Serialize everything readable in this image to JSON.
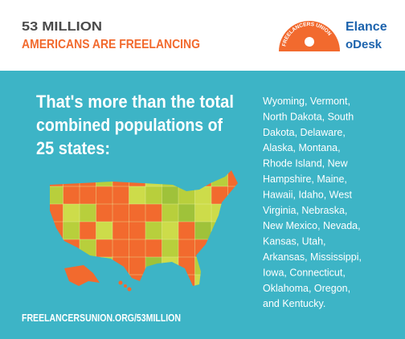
{
  "header": {
    "line1": "53 MILLION",
    "line2": "AMERICANS ARE FREELANCING"
  },
  "logos": {
    "freelancers_union": "FREELANCERS UNION",
    "elance": "Elance",
    "odesk": "oDesk"
  },
  "headline": {
    "lines": [
      "That's more than the total",
      "combined populations of",
      "25 states:"
    ]
  },
  "states_text": {
    "lines": [
      "Wyoming, Vermont,",
      "North Dakota, South",
      "Dakota, Delaware,",
      "Alaska, Montana,",
      "Rhode Island, New",
      "Hampshire, Maine,",
      "Hawaii, Idaho, West",
      "Virginia, Nebraska,",
      "New Mexico, Nevada,",
      "Kansas, Utah,",
      "Arkansas, Mississippi,",
      "Iowa, Connecticut,",
      "Oklahoma, Oregon,",
      "and Kentucky."
    ]
  },
  "footer": {
    "url": "FREELANCERSUNION.ORG/53MILLION"
  }
}
